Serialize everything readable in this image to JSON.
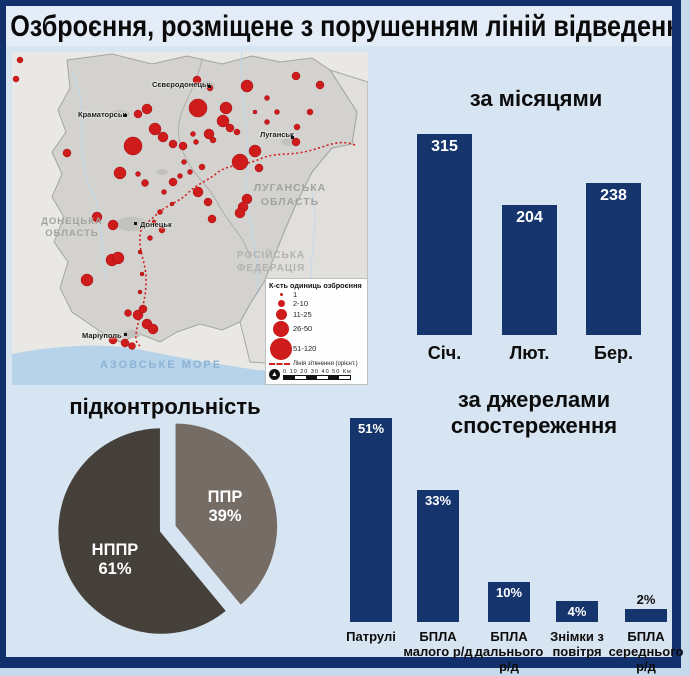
{
  "title": "Озброєння, розміщене з порушенням ліній відведення",
  "map": {
    "sea_label": "АЗОВСЬКЕ МОРЕ",
    "regions": [
      {
        "lines": [
          "ДОНЕЦЬКА",
          "ОБЛАСТЬ"
        ]
      },
      {
        "lines": [
          "ЛУГАНСЬКА",
          "ОБЛАСТЬ"
        ]
      },
      {
        "lines": [
          "РОСІЙСЬКА",
          "ФЕДЕРАЦІЯ"
        ]
      }
    ],
    "cities": [
      {
        "name": "Сєвєродонецьк"
      },
      {
        "name": "Краматорськ"
      },
      {
        "name": "Луганськ"
      },
      {
        "name": "Донецьк"
      },
      {
        "name": "Маріуполь"
      }
    ],
    "legend": {
      "title": "К-сть одиниць озброєння",
      "classes": [
        {
          "label": "1",
          "r": 1.5
        },
        {
          "label": "2-10",
          "r": 3.5
        },
        {
          "label": "11-25",
          "r": 5.5
        },
        {
          "label": "26-50",
          "r": 8
        },
        {
          "label": "51-120",
          "r": 11
        }
      ],
      "line_label": "Лінія зіткнення (орієнт.)",
      "scale_label": "0    10    20    30    40    50 Км",
      "dot_color": "#ce1b1b"
    },
    "dots": [
      [
        186,
        56,
        9
      ],
      [
        121,
        94,
        9
      ],
      [
        228,
        110,
        8
      ],
      [
        243,
        99,
        6
      ],
      [
        235,
        34,
        6
      ],
      [
        284,
        24,
        4
      ],
      [
        284,
        90,
        4
      ],
      [
        285,
        75,
        3
      ],
      [
        247,
        116,
        4
      ],
      [
        235,
        147,
        5
      ],
      [
        231,
        155,
        5
      ],
      [
        185,
        28,
        4
      ],
      [
        198,
        36,
        3
      ],
      [
        214,
        56,
        6
      ],
      [
        211,
        69,
        6
      ],
      [
        218,
        76,
        4
      ],
      [
        225,
        80,
        3
      ],
      [
        197,
        82,
        5
      ],
      [
        201,
        88,
        3
      ],
      [
        181,
        82,
        2.5
      ],
      [
        184,
        90,
        2.5
      ],
      [
        171,
        94,
        4
      ],
      [
        161,
        92,
        4
      ],
      [
        151,
        85,
        5
      ],
      [
        143,
        77,
        6
      ],
      [
        135,
        57,
        5
      ],
      [
        126,
        62,
        4
      ],
      [
        108,
        121,
        6
      ],
      [
        126,
        122,
        2.5
      ],
      [
        133,
        131,
        3.5
      ],
      [
        161,
        130,
        4
      ],
      [
        55,
        101,
        4
      ],
      [
        8,
        8,
        3
      ],
      [
        4,
        27,
        3
      ],
      [
        85,
        165,
        5
      ],
      [
        101,
        173,
        5
      ],
      [
        100,
        208,
        6
      ],
      [
        106,
        206,
        6
      ],
      [
        75,
        228,
        6
      ],
      [
        116,
        261,
        3.5
      ],
      [
        126,
        263,
        5
      ],
      [
        131,
        257,
        4
      ],
      [
        135,
        272,
        5
      ],
      [
        141,
        277,
        5
      ],
      [
        101,
        288,
        4
      ],
      [
        113,
        291,
        4
      ],
      [
        120,
        294,
        3.5
      ],
      [
        200,
        167,
        4
      ],
      [
        228,
        161,
        5
      ],
      [
        255,
        46,
        2.5
      ],
      [
        308,
        33,
        4
      ],
      [
        298,
        60,
        3
      ],
      [
        265,
        60,
        2.5
      ],
      [
        255,
        70,
        2.5
      ],
      [
        243,
        60,
        2
      ],
      [
        172,
        110,
        2.5
      ],
      [
        178,
        120,
        2.5
      ],
      [
        190,
        115,
        3
      ],
      [
        168,
        124,
        2.5
      ],
      [
        152,
        140,
        2.5
      ],
      [
        160,
        152,
        2
      ],
      [
        148,
        160,
        2.5
      ],
      [
        142,
        170,
        2
      ],
      [
        150,
        178,
        3
      ],
      [
        138,
        186,
        2.5
      ],
      [
        128,
        200,
        2
      ],
      [
        130,
        222,
        2
      ],
      [
        128,
        240,
        2
      ],
      [
        186,
        140,
        5
      ],
      [
        196,
        150,
        4
      ]
    ]
  },
  "chart_data": [
    {
      "id": "months",
      "type": "bar",
      "title": "за місяцями",
      "categories": [
        "Січ.",
        "Лют.",
        "Бер."
      ],
      "values": [
        315,
        204,
        238
      ],
      "bar_color": "#16356d",
      "ylim": [
        0,
        390
      ]
    },
    {
      "id": "controllability",
      "type": "pie",
      "title": "підконтрольність",
      "slices": [
        {
          "label": "ППР",
          "value": 39,
          "pct": "39%",
          "color": "#756c66",
          "explode": 11
        },
        {
          "label": "НППР",
          "value": 61,
          "pct": "61%",
          "color": "#454039",
          "explode": 3
        }
      ]
    },
    {
      "id": "sources",
      "type": "bar",
      "title": "за джерелами спостереження",
      "title_lines": [
        "за джерелами",
        "спостереження"
      ],
      "categories": [
        "Патрулі",
        "БПЛА\nмалого р/д",
        "БПЛА\nдальнього\nр/д",
        "Знімки з\nповітря",
        "БПЛА\nсереднього\nр/д"
      ],
      "values": [
        51,
        33,
        10,
        4,
        2
      ],
      "value_labels": [
        "51%",
        "33%",
        "10%",
        "4%",
        "2%"
      ],
      "unit": "%",
      "bar_color": "#16356d",
      "ylim": [
        0,
        55
      ]
    }
  ]
}
